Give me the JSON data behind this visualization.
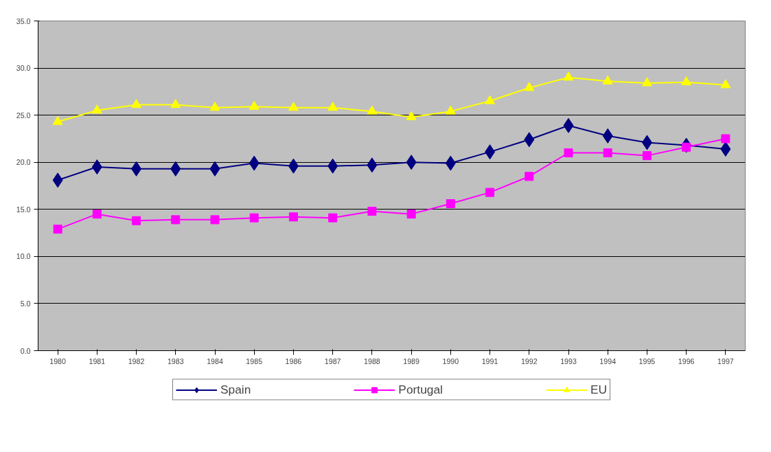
{
  "chart_data": {
    "type": "line",
    "categories": [
      "1980",
      "1981",
      "1982",
      "1983",
      "1984",
      "1985",
      "1986",
      "1987",
      "1988",
      "1989",
      "1990",
      "1991",
      "1992",
      "1993",
      "1994",
      "1995",
      "1996",
      "1997"
    ],
    "series": [
      {
        "name": "Spain",
        "color": "#000080",
        "marker": "diamond",
        "values": [
          18.1,
          19.5,
          19.3,
          19.3,
          19.3,
          19.9,
          19.6,
          19.6,
          19.7,
          20.0,
          19.9,
          21.1,
          22.4,
          23.9,
          22.8,
          22.1,
          21.8,
          21.4
        ]
      },
      {
        "name": "Portugal",
        "color": "#ff00ff",
        "marker": "square",
        "values": [
          12.9,
          14.5,
          13.8,
          13.9,
          13.9,
          14.1,
          14.2,
          14.1,
          14.8,
          14.5,
          15.6,
          16.8,
          18.5,
          21.0,
          21.0,
          20.7,
          21.6,
          22.5
        ]
      },
      {
        "name": "EU",
        "color": "#ffff00",
        "marker": "triangle",
        "values": [
          24.3,
          25.5,
          26.1,
          26.1,
          25.8,
          25.9,
          25.8,
          25.8,
          25.4,
          24.8,
          25.4,
          26.5,
          27.9,
          29.0,
          28.6,
          28.4,
          28.5,
          28.2
        ]
      }
    ],
    "ylim": [
      0,
      35
    ],
    "yticks": [
      {
        "value": 0,
        "label": "0.0"
      },
      {
        "value": 5,
        "label": "5.0"
      },
      {
        "value": 10,
        "label": "10.0"
      },
      {
        "value": 15,
        "label": "15.0"
      },
      {
        "value": 20,
        "label": "20.0"
      },
      {
        "value": 25,
        "label": "25.0"
      },
      {
        "value": 30,
        "label": "30.0"
      },
      {
        "value": 35,
        "label": "35.0"
      }
    ],
    "grid": "y",
    "legend": "bottom",
    "line_style": "solid"
  }
}
